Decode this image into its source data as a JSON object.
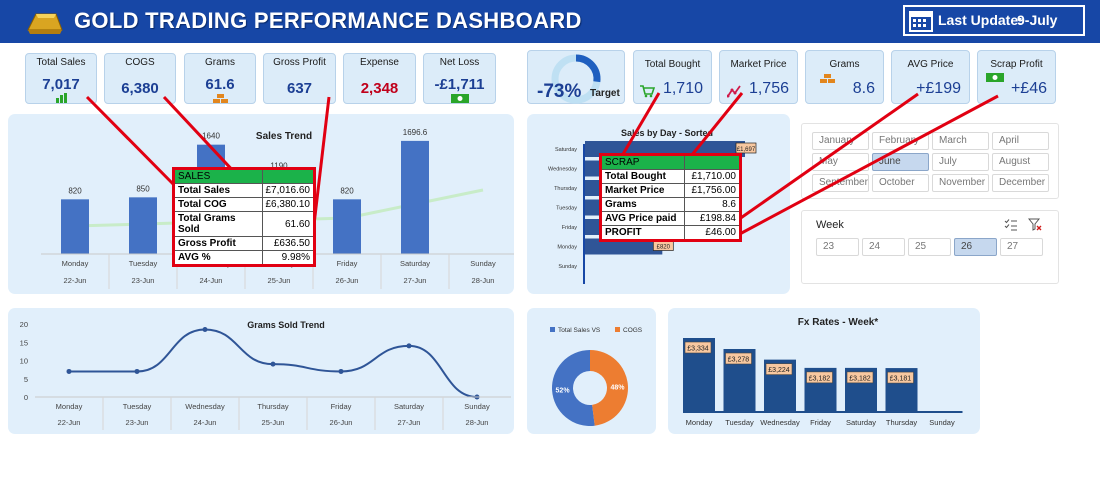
{
  "header": {
    "title": "GOLD TRADING PERFORMANCE DASHBOARD",
    "last_update_label": "Last Update:",
    "last_update_value": "9-July"
  },
  "kpis_left": [
    {
      "label": "Total Sales",
      "value": "7,017",
      "icon": "bar-chart-icon"
    },
    {
      "label": "COGS",
      "value": "6,380"
    },
    {
      "label": "Grams",
      "value": "61.6",
      "icon": "gold-bars-icon"
    },
    {
      "label": "Gross Profit",
      "value": "637"
    },
    {
      "label": "Expense",
      "value": "2,348"
    },
    {
      "label": "Net Loss",
      "value": "-£1,711",
      "icon": "cash-icon"
    }
  ],
  "target": {
    "value": "-73%",
    "label": "Target",
    "ring_fill": 0.27
  },
  "kpis_right": [
    {
      "label": "Total Bought",
      "value": "1,710",
      "icon": "cart-icon"
    },
    {
      "label": "Market Price",
      "value": "1,756",
      "icon": "trend-icon"
    },
    {
      "label": "Grams",
      "value": "8.6",
      "icon": "gold-bars-icon"
    },
    {
      "label": "AVG Price",
      "value": "+£199"
    },
    {
      "label": "Scrap Profit",
      "value": "+£46",
      "icon": "cash-icon"
    }
  ],
  "sales_table": {
    "header": "SALES",
    "rows": [
      {
        "label": "Total Sales",
        "value": "£7,016.60"
      },
      {
        "label": "Total COG",
        "value": "£6,380.10"
      },
      {
        "label": "Total Grams Sold",
        "value": "61.60"
      },
      {
        "label": "Gross Profit",
        "value": "£636.50"
      },
      {
        "label": "AVG %",
        "value": "9.98%"
      }
    ]
  },
  "scrap_table": {
    "header": "SCRAP",
    "rows": [
      {
        "label": "Total Bought",
        "value": "£1,710.00"
      },
      {
        "label": "Market Price",
        "value": "£1,756.00"
      },
      {
        "label": "Grams",
        "value": "8.6"
      },
      {
        "label": "AVG Price paid",
        "value": "£198.84"
      },
      {
        "label": "PROFIT",
        "value": "£46.00"
      }
    ]
  },
  "months": [
    "January",
    "February",
    "March",
    "April",
    "May",
    "June",
    "July",
    "August",
    "September",
    "October",
    "November",
    "December"
  ],
  "selected_month": "June",
  "week": {
    "label": "Week",
    "values": [
      "23",
      "24",
      "25",
      "26",
      "27"
    ],
    "selected": "26"
  },
  "chart_data": [
    {
      "type": "bar",
      "title": "Sales Trend",
      "categories": [
        "Monday",
        "Tuesday",
        "Wednesday",
        "Thursday",
        "Friday",
        "Saturday",
        "Sunday"
      ],
      "dates": [
        "22-Jun",
        "23-Jun",
        "24-Jun",
        "25-Jun",
        "26-Jun",
        "27-Jun",
        "28-Jun"
      ],
      "values": [
        820,
        850,
        1640,
        1190,
        820,
        1696.6,
        0
      ],
      "value_labels": [
        "820",
        "850",
        "1640",
        "1190",
        "820",
        "1696.6",
        ""
      ],
      "ylim": [
        0,
        1800
      ]
    },
    {
      "type": "bar",
      "title": "Sales by Day - Sorted",
      "categories": [
        "Saturday",
        "Wednesday",
        "Thursday",
        "Tuesday",
        "Friday",
        "Monday",
        "Sunday"
      ],
      "values": [
        1697,
        1640,
        1190,
        850,
        820,
        820,
        0
      ],
      "value_labels": [
        "£1,697",
        "",
        "",
        "",
        "",
        "£820",
        ""
      ]
    },
    {
      "type": "line",
      "title": "Grams Sold Trend",
      "categories": [
        "Monday",
        "Tuesday",
        "Wednesday",
        "Thursday",
        "Friday",
        "Saturday",
        "Sunday"
      ],
      "dates": [
        "22-Jun",
        "23-Jun",
        "24-Jun",
        "25-Jun",
        "26-Jun",
        "27-Jun",
        "28-Jun"
      ],
      "values": [
        7,
        7,
        18.5,
        9,
        7,
        14,
        0
      ],
      "ylim": [
        0,
        20
      ],
      "yticks": [
        0,
        5,
        10,
        15,
        20
      ]
    },
    {
      "type": "pie",
      "legend": [
        "Total Sales VS",
        "COGS"
      ],
      "values": [
        52,
        48
      ],
      "labels": [
        "52%",
        "48%"
      ],
      "colors": [
        "#4472c4",
        "#ed7d31"
      ]
    },
    {
      "type": "bar",
      "title": "Fx Rates - Week*",
      "categories": [
        "Monday",
        "Tuesday",
        "Wednesday",
        "Friday",
        "Saturday",
        "Thursday",
        "Sunday"
      ],
      "values": [
        3334,
        3278,
        3224,
        3182,
        3182,
        3181,
        0
      ],
      "value_labels": [
        "£3,334",
        "£3,278",
        "£3,224",
        "£3,182",
        "£3,182",
        "£3,181",
        ""
      ]
    }
  ]
}
